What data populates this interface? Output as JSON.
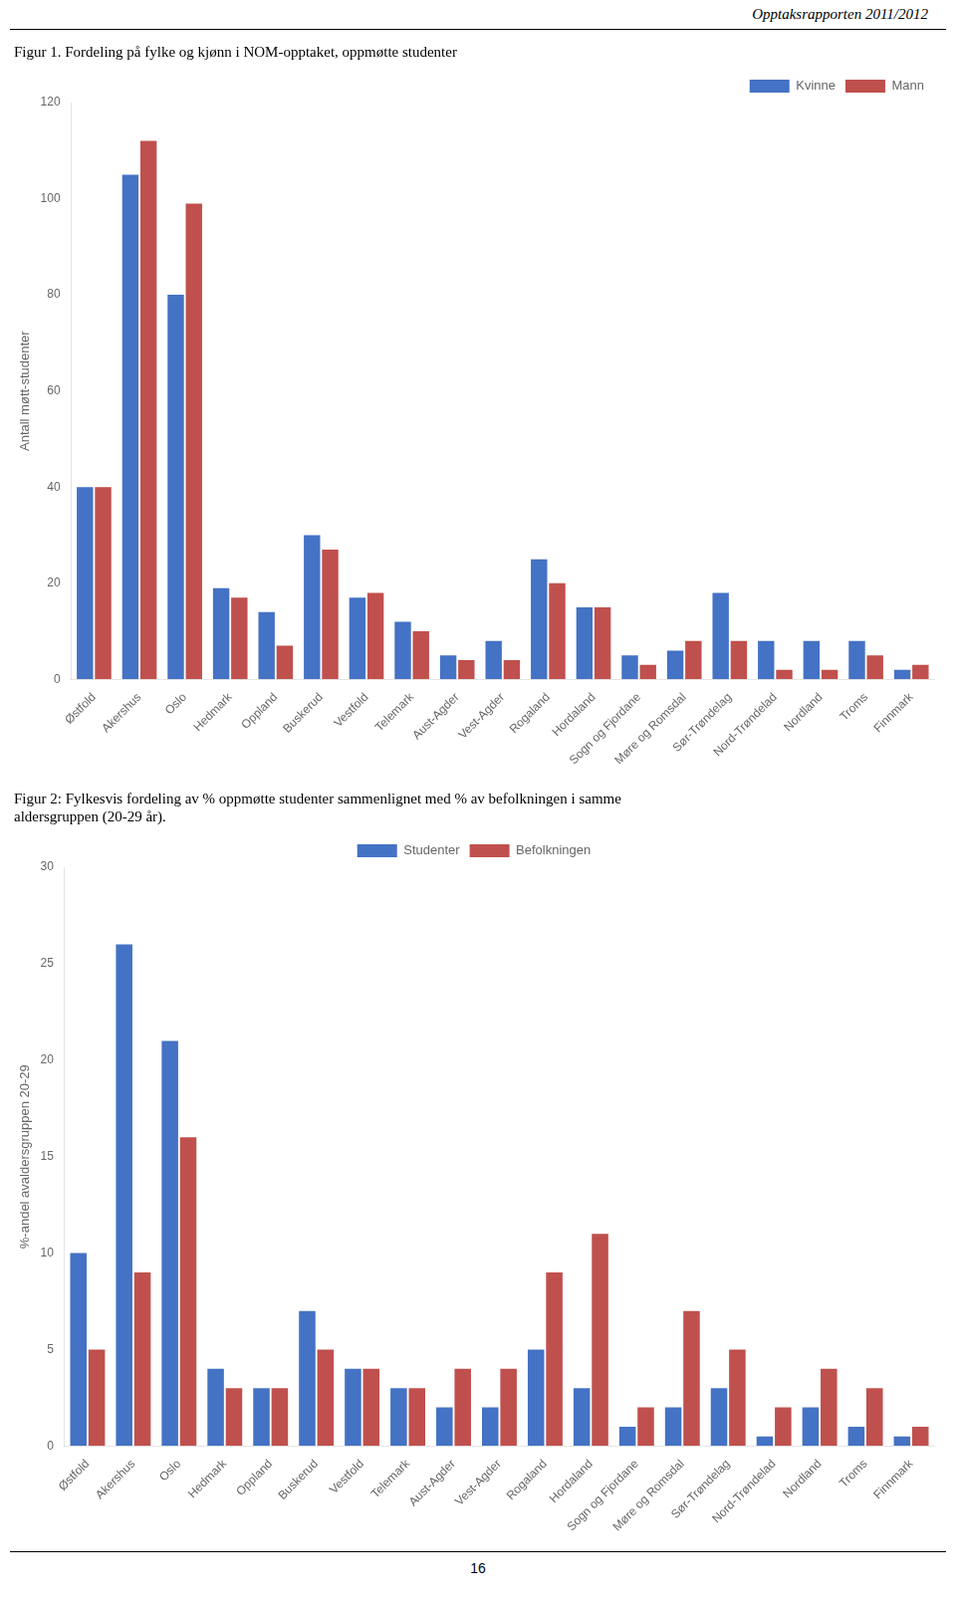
{
  "header": "Opptaksrapporten 2011/2012",
  "footer": "16",
  "chart_data": [
    {
      "type": "bar",
      "title": "Figur 1. Fordeling på fylke og kjønn i NOM-opptaket, oppmøtte studenter",
      "y_label": "Antall møtt-studenter",
      "categories": [
        "Østfold",
        "Akershus",
        "Oslo",
        "Hedmark",
        "Oppland",
        "Buskerud",
        "Vestfold",
        "Telemark",
        "Aust-Agder",
        "Vest-Agder",
        "Rogaland",
        "Hordaland",
        "Sogn og Fjordane",
        "Møre og Romsdal",
        "Sør-Trøndelag",
        "Nord-Trøndelad",
        "Nordland",
        "Troms",
        "Finnmark"
      ],
      "series": [
        {
          "name": "Kvinne",
          "color": "#4472C4",
          "values": [
            40,
            105,
            80,
            19,
            14,
            30,
            17,
            12,
            5,
            8,
            25,
            15,
            5,
            6,
            18,
            8,
            8,
            8,
            2
          ]
        },
        {
          "name": "Mann",
          "color": "#C0504D",
          "values": [
            40,
            112,
            99,
            17,
            7,
            27,
            18,
            10,
            4,
            4,
            20,
            15,
            3,
            8,
            8,
            2,
            2,
            5,
            3
          ]
        }
      ],
      "ylim": [
        0,
        120
      ],
      "yticks": [
        0,
        20,
        40,
        60,
        80,
        100,
        120
      ],
      "grid": false,
      "legend": "upper right"
    },
    {
      "type": "bar",
      "title": [
        "Figur 2: Fylkesvis fordeling av % oppmøtte studenter sammenlignet med % av befolkningen i samme",
        "aldersgruppen (20-29 år)."
      ],
      "y_label": "%-andel avaldersgruppen 20-29",
      "categories": [
        "Østfold",
        "Akershus",
        "Oslo",
        "Hedmark",
        "Oppland",
        "Buskerud",
        "Vestfold",
        "Telemark",
        "Aust-Agder",
        "Vest-Agder",
        "Rogaland",
        "Hordaland",
        "Sogn og Fjordane",
        "Møre og Romsdal",
        "Sør-Trøndelag",
        "Nord-Trøndelad",
        "Nordland",
        "Troms",
        "Finnmark"
      ],
      "series": [
        {
          "name": "Studenter",
          "color": "#4472C4",
          "values": [
            10,
            26,
            21,
            4,
            3,
            7,
            4,
            3,
            2,
            2,
            5,
            3,
            1,
            2,
            3,
            0.5,
            2,
            1,
            0.5
          ]
        },
        {
          "name": "Befolkningen",
          "color": "#C0504D",
          "values": [
            5,
            9,
            16,
            3,
            3,
            5,
            4,
            3,
            4,
            4,
            9,
            11,
            2,
            7,
            5,
            2,
            4,
            3,
            1
          ]
        }
      ],
      "ylim": [
        0,
        30
      ],
      "yticks": [
        0,
        5,
        10,
        15,
        20,
        25,
        30
      ],
      "grid": false,
      "legend": "upper center"
    }
  ]
}
